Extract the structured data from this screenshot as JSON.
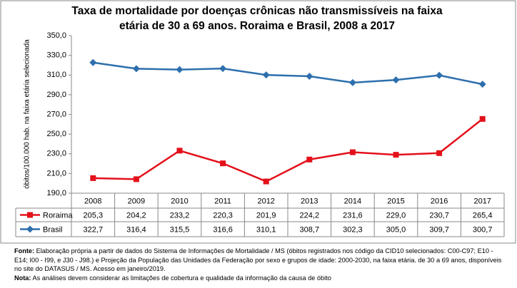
{
  "chart_data": {
    "type": "line",
    "title": [
      "Taxa de mortalidade por doenças crônicas não transmissíveis na faixa",
      "etária de 30 a 69 anos. Roraima e Brasil, 2008 a 2017"
    ],
    "ylabel": "óbitos/100.000 hab. na faixa etária selecionada",
    "categories": [
      "2008",
      "2009",
      "2010",
      "2011",
      "2012",
      "2013",
      "2014",
      "2015",
      "2016",
      "2017"
    ],
    "series": [
      {
        "name": "Roraima",
        "color": "#e3101a",
        "marker": "square",
        "values": [
          205.3,
          204.2,
          233.2,
          220.3,
          201.9,
          224.2,
          231.6,
          229.0,
          230.7,
          265.4
        ],
        "value_labels": [
          "205,3",
          "204,2",
          "233,2",
          "220,3",
          "201,9",
          "224,2",
          "231,6",
          "229,0",
          "230,7",
          "265,4"
        ]
      },
      {
        "name": "Brasil",
        "color": "#2e6fad",
        "marker": "diamond",
        "values": [
          322.7,
          316.4,
          315.5,
          316.6,
          310.1,
          308.7,
          302.3,
          305.0,
          309.7,
          300.7
        ],
        "value_labels": [
          "322,7",
          "316,4",
          "315,5",
          "316,6",
          "310,1",
          "308,7",
          "302,3",
          "305,0",
          "309,7",
          "300,7"
        ]
      }
    ],
    "ylim": [
      190,
      350
    ],
    "yticks": [
      {
        "value": 190,
        "label": "190,0"
      },
      {
        "value": 210,
        "label": "210,0"
      },
      {
        "value": 230,
        "label": "230,0"
      },
      {
        "value": 250,
        "label": "250,0"
      },
      {
        "value": 270,
        "label": "270,0"
      },
      {
        "value": 290,
        "label": "290,0"
      },
      {
        "value": 310,
        "label": "310,0"
      },
      {
        "value": 330,
        "label": "330,0"
      },
      {
        "value": 350,
        "label": "350,0"
      }
    ],
    "grid": false,
    "source_label": "Fonte:",
    "source": "Elaboração própria a partir de dados do Sistema de Informações de Mortalidade / MS (óbitos registrados nos código da CID10 selecionados: C00-C97; E10 - E14; I00 - I99, e J30 - J98.) e Projeção da População das Unidades da Federação por sexo e grupos de idade: 2000-2030, na faixa etária. de 30 a 69 anos, disponíveis no site do DATASUS / MS.  Acesso em janeiro/2019.",
    "note_label": "Nota:",
    "note": "As análises devem considerar as limitações de cobertura e qualidade da informação da causa de óbito"
  }
}
